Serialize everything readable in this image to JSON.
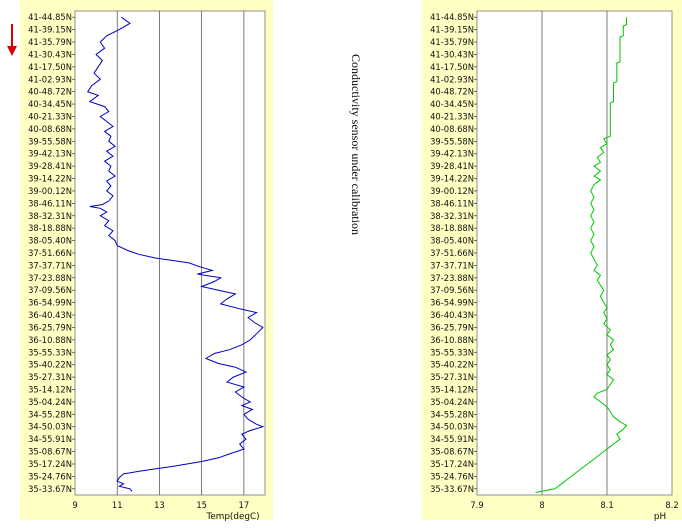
{
  "note": "Conductivity sensor under calibration",
  "colors": {
    "panel_bg": "#ffffc4",
    "plot_bg": "#ffffff",
    "temp_line": "#0000c8",
    "ph_line": "#00c800",
    "arrow": "#dd0000",
    "grid": "#444444"
  },
  "chart_data": [
    {
      "type": "line",
      "xlabel": "Temp(degC)",
      "ylabel": "",
      "xlim": [
        9,
        18
      ],
      "xticks": [
        "9",
        "11",
        "13",
        "15",
        "17"
      ],
      "grid": true,
      "orientation": "vertical-profile",
      "y_categories": [
        "41-44.85N",
        "41-39.15N",
        "41-35.79N",
        "41-30.43N",
        "41-17.50N",
        "41-02.93N",
        "40-48.72N",
        "40-34.45N",
        "40-21.33N",
        "40-08.68N",
        "39-55.58N",
        "39-42.13N",
        "39-28.41N",
        "39-14.22N",
        "39-00.12N",
        "38-46.11N",
        "38-32.31N",
        "38-18.88N",
        "38-05.40N",
        "37-51.66N",
        "37-37.71N",
        "37-23.88N",
        "37-09.56N",
        "36-54.99N",
        "36-40.43N",
        "36-25.79N",
        "36-10.88N",
        "35-55.33N",
        "35-40.22N",
        "35-27.31N",
        "35-14.12N",
        "35-04.24N",
        "34-55.28N",
        "34-50.03N",
        "34-55.91N",
        "35-08.67N",
        "35-17.24N",
        "35-24.76N",
        "35-33.67N"
      ],
      "series": [
        {
          "values": [
            [
              11.2,
              0
            ],
            [
              11.6,
              0.5
            ],
            [
              11.1,
              1
            ],
            [
              10.5,
              1.5
            ],
            [
              10.2,
              2
            ],
            [
              10.4,
              2.5
            ],
            [
              10.0,
              3
            ],
            [
              10.3,
              3.5
            ],
            [
              10.1,
              4
            ],
            [
              9.9,
              4.5
            ],
            [
              10.2,
              5
            ],
            [
              9.8,
              5.5
            ],
            [
              9.6,
              6
            ],
            [
              10.1,
              6.3
            ],
            [
              9.7,
              6.8
            ],
            [
              10.4,
              7.2
            ],
            [
              10.6,
              7.6
            ],
            [
              10.2,
              8
            ],
            [
              10.5,
              8.4
            ],
            [
              10.8,
              8.8
            ],
            [
              10.4,
              9.2
            ],
            [
              10.7,
              9.6
            ],
            [
              10.6,
              10
            ],
            [
              10.9,
              10.4
            ],
            [
              10.5,
              10.8
            ],
            [
              10.8,
              11.2
            ],
            [
              10.4,
              11.6
            ],
            [
              10.7,
              12
            ],
            [
              10.6,
              12.4
            ],
            [
              10.9,
              12.8
            ],
            [
              10.5,
              13.2
            ],
            [
              10.7,
              13.6
            ],
            [
              10.5,
              14
            ],
            [
              10.8,
              14.4
            ],
            [
              10.6,
              14.8
            ],
            [
              10.3,
              15.1
            ],
            [
              9.7,
              15.25
            ],
            [
              10.2,
              15.4
            ],
            [
              10.5,
              15.7
            ],
            [
              10.2,
              16
            ],
            [
              10.6,
              16.4
            ],
            [
              10.4,
              16.8
            ],
            [
              10.8,
              17.2
            ],
            [
              10.6,
              17.6
            ],
            [
              10.9,
              18
            ],
            [
              11.0,
              18.4
            ],
            [
              11.5,
              18.8
            ],
            [
              12.0,
              19.1
            ],
            [
              12.8,
              19.4
            ],
            [
              13.6,
              19.6
            ],
            [
              14.4,
              19.8
            ],
            [
              14.9,
              20.1
            ],
            [
              15.5,
              20.4
            ],
            [
              14.8,
              20.7
            ],
            [
              15.9,
              21.0
            ],
            [
              15.6,
              21.3
            ],
            [
              15.0,
              21.7
            ],
            [
              15.8,
              22.0
            ],
            [
              16.6,
              22.3
            ],
            [
              16.2,
              22.7
            ],
            [
              15.9,
              23.1
            ],
            [
              16.8,
              23.5
            ],
            [
              17.6,
              23.8
            ],
            [
              17.2,
              24.2
            ],
            [
              17.5,
              24.6
            ],
            [
              17.9,
              25.0
            ],
            [
              17.6,
              25.5
            ],
            [
              17.3,
              26.0
            ],
            [
              16.9,
              26.4
            ],
            [
              16.3,
              26.8
            ],
            [
              15.6,
              27.1
            ],
            [
              15.2,
              27.5
            ],
            [
              15.8,
              27.9
            ],
            [
              16.6,
              28.2
            ],
            [
              17.1,
              28.6
            ],
            [
              16.5,
              29.0
            ],
            [
              16.2,
              29.4
            ],
            [
              17.0,
              29.8
            ],
            [
              16.6,
              30.2
            ],
            [
              16.9,
              30.6
            ],
            [
              17.3,
              31.0
            ],
            [
              16.9,
              31.3
            ],
            [
              17.4,
              31.6
            ],
            [
              17.0,
              32.0
            ],
            [
              17.2,
              32.4
            ],
            [
              17.6,
              32.8
            ],
            [
              17.9,
              33.0
            ],
            [
              17.3,
              33.3
            ],
            [
              16.9,
              33.6
            ],
            [
              17.1,
              34.0
            ],
            [
              16.8,
              34.4
            ],
            [
              17.0,
              34.8
            ],
            [
              16.3,
              35.2
            ],
            [
              15.8,
              35.5
            ],
            [
              15.0,
              35.8
            ],
            [
              14.3,
              36.0
            ],
            [
              13.6,
              36.2
            ],
            [
              12.8,
              36.4
            ],
            [
              12.0,
              36.6
            ],
            [
              11.3,
              36.8
            ],
            [
              11.1,
              37.1
            ],
            [
              11.0,
              37.4
            ],
            [
              11.3,
              37.6
            ],
            [
              11.1,
              37.8
            ],
            [
              11.6,
              38.0
            ],
            [
              11.7,
              38.2
            ]
          ]
        }
      ]
    },
    {
      "type": "line",
      "xlabel": "pH",
      "ylabel": "",
      "xlim": [
        7.9,
        8.2
      ],
      "xticks": [
        "7.9",
        "8",
        "8.1",
        "8.2"
      ],
      "grid": true,
      "orientation": "vertical-profile",
      "y_categories": [
        "41-44.85N",
        "41-39.15N",
        "41-35.79N",
        "41-30.43N",
        "41-17.50N",
        "41-02.93N",
        "40-48.72N",
        "40-34.45N",
        "40-21.33N",
        "40-08.68N",
        "39-55.58N",
        "39-42.13N",
        "39-28.41N",
        "39-14.22N",
        "39-00.12N",
        "38-46.11N",
        "38-32.31N",
        "38-18.88N",
        "38-05.40N",
        "37-51.66N",
        "37-37.71N",
        "37-23.88N",
        "37-09.56N",
        "36-54.99N",
        "36-40.43N",
        "36-25.79N",
        "36-10.88N",
        "35-55.33N",
        "35-40.22N",
        "35-27.31N",
        "35-14.12N",
        "35-04.24N",
        "34-55.28N",
        "34-50.03N",
        "34-55.91N",
        "35-08.67N",
        "35-17.24N",
        "35-24.76N",
        "35-33.67N"
      ],
      "series": [
        {
          "values": [
            [
              8.13,
              0
            ],
            [
              8.13,
              0.6
            ],
            [
              8.125,
              0.7
            ],
            [
              8.125,
              1.5
            ],
            [
              8.12,
              1.6
            ],
            [
              8.12,
              3.6
            ],
            [
              8.115,
              3.7
            ],
            [
              8.115,
              5.2
            ],
            [
              8.11,
              5.3
            ],
            [
              8.11,
              6.8
            ],
            [
              8.105,
              6.9
            ],
            [
              8.105,
              9.6
            ],
            [
              8.095,
              9.8
            ],
            [
              8.1,
              10.2
            ],
            [
              8.09,
              10.5
            ],
            [
              8.095,
              10.9
            ],
            [
              8.085,
              11.3
            ],
            [
              8.09,
              11.7
            ],
            [
              8.08,
              12.0
            ],
            [
              8.09,
              12.4
            ],
            [
              8.08,
              12.8
            ],
            [
              8.09,
              13.1
            ],
            [
              8.08,
              13.5
            ],
            [
              8.075,
              14.0
            ],
            [
              8.08,
              14.5
            ],
            [
              8.075,
              15.0
            ],
            [
              8.08,
              15.5
            ],
            [
              8.075,
              16.0
            ],
            [
              8.08,
              16.5
            ],
            [
              8.075,
              17.0
            ],
            [
              8.08,
              17.5
            ],
            [
              8.075,
              18.0
            ],
            [
              8.08,
              18.5
            ],
            [
              8.075,
              19.0
            ],
            [
              8.08,
              19.5
            ],
            [
              8.085,
              20.0
            ],
            [
              8.08,
              20.4
            ],
            [
              8.09,
              20.8
            ],
            [
              8.085,
              21.2
            ],
            [
              8.09,
              21.6
            ],
            [
              8.095,
              22.0
            ],
            [
              8.09,
              22.5
            ],
            [
              8.095,
              23.0
            ],
            [
              8.1,
              23.4
            ],
            [
              8.095,
              23.8
            ],
            [
              8.1,
              24.3
            ],
            [
              8.095,
              24.7
            ],
            [
              8.105,
              25.2
            ],
            [
              8.1,
              25.6
            ],
            [
              8.11,
              26.0
            ],
            [
              8.105,
              26.4
            ],
            [
              8.11,
              26.8
            ],
            [
              8.1,
              27.2
            ],
            [
              8.105,
              27.6
            ],
            [
              8.1,
              28.0
            ],
            [
              8.105,
              28.4
            ],
            [
              8.1,
              28.8
            ],
            [
              8.11,
              29.2
            ],
            [
              8.105,
              29.6
            ],
            [
              8.1,
              30.0
            ],
            [
              8.085,
              30.3
            ],
            [
              8.08,
              30.6
            ],
            [
              8.09,
              31.0
            ],
            [
              8.1,
              31.4
            ],
            [
              8.105,
              31.8
            ],
            [
              8.11,
              32.2
            ],
            [
              8.12,
              32.6
            ],
            [
              8.13,
              32.9
            ],
            [
              8.125,
              33.2
            ],
            [
              8.115,
              33.6
            ],
            [
              8.12,
              34.0
            ],
            [
              8.11,
              34.4
            ],
            [
              8.1,
              34.8
            ],
            [
              8.09,
              35.2
            ],
            [
              8.08,
              35.6
            ],
            [
              8.07,
              36.0
            ],
            [
              8.06,
              36.4
            ],
            [
              8.05,
              36.8
            ],
            [
              8.04,
              37.2
            ],
            [
              8.03,
              37.6
            ],
            [
              8.02,
              38.0
            ],
            [
              8.0,
              38.2
            ],
            [
              7.99,
              38.3
            ]
          ]
        }
      ]
    }
  ]
}
